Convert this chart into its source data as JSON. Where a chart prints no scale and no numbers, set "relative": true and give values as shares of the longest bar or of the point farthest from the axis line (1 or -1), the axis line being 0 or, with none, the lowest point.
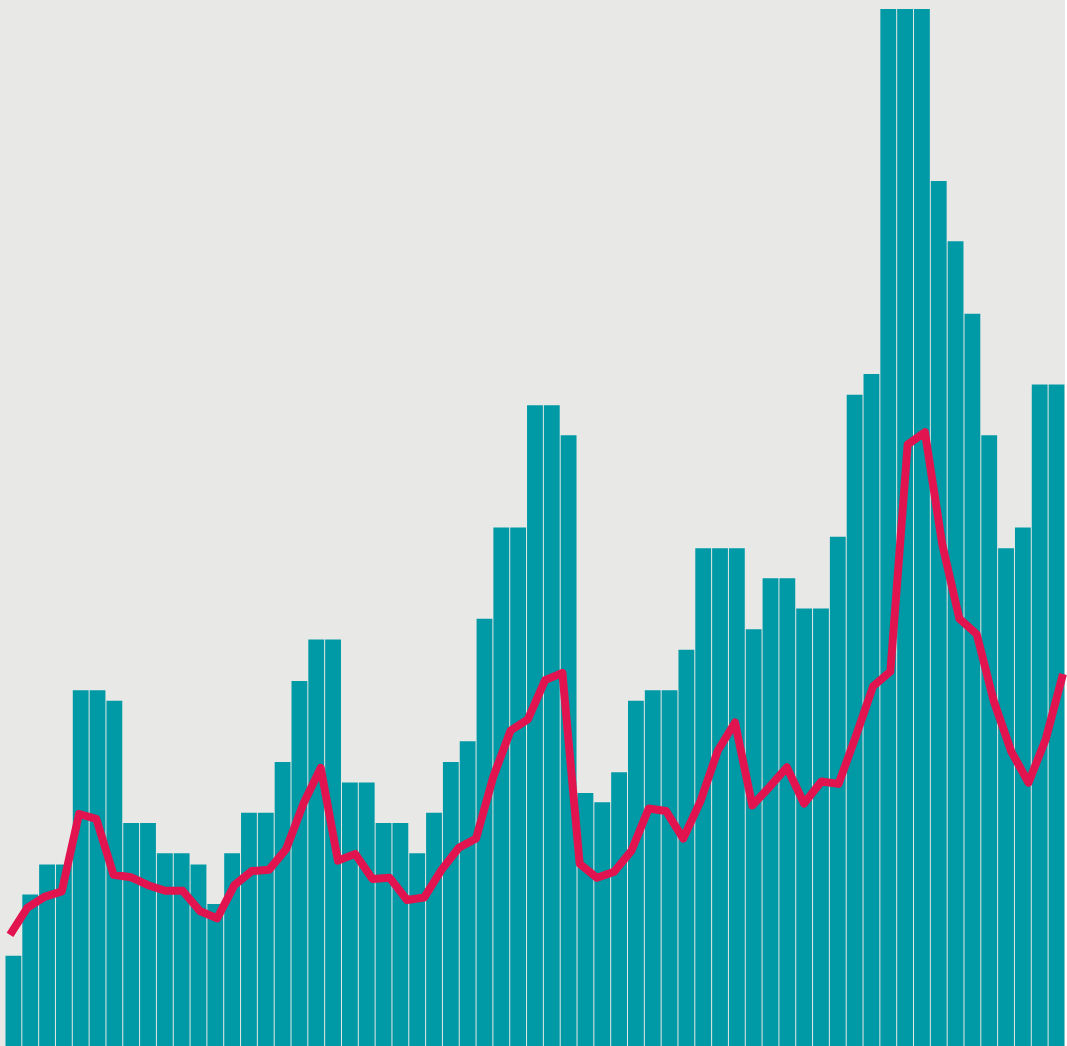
{
  "chart_data": [
    {
      "type": "bar",
      "relative": true,
      "color": "#0099a6",
      "categories": [
        null,
        null,
        null,
        null,
        null,
        null,
        null,
        null,
        null,
        null,
        null,
        null,
        null,
        null,
        null,
        null,
        null,
        null,
        null,
        null,
        null,
        null,
        null,
        null,
        null,
        null,
        null,
        null,
        null,
        null,
        null,
        null,
        null,
        null,
        null,
        null,
        null,
        null,
        null,
        null,
        null,
        null,
        null,
        null,
        null,
        null,
        null,
        null,
        null,
        null,
        null,
        null,
        null,
        null,
        null,
        null,
        null,
        null,
        null,
        null,
        null,
        null,
        null
      ],
      "values": [
        0.087,
        0.146,
        0.175,
        0.175,
        0.343,
        0.343,
        0.333,
        0.215,
        0.215,
        0.186,
        0.186,
        0.175,
        0.137,
        0.186,
        0.225,
        0.225,
        0.274,
        0.352,
        0.392,
        0.392,
        0.254,
        0.254,
        0.215,
        0.215,
        0.186,
        0.225,
        0.274,
        0.294,
        0.412,
        0.5,
        0.5,
        0.618,
        0.618,
        0.589,
        0.244,
        0.235,
        0.264,
        0.333,
        0.343,
        0.343,
        0.382,
        0.48,
        0.48,
        0.48,
        0.402,
        0.451,
        0.451,
        0.422,
        0.422,
        0.491,
        0.628,
        0.648,
        1,
        1,
        1,
        0.834,
        0.776,
        0.706,
        0.589,
        0.48,
        0.5,
        0.638,
        0.638
      ]
    },
    {
      "type": "line",
      "relative": true,
      "color": "#e2144f",
      "categories": [
        null,
        null,
        null,
        null,
        null,
        null,
        null,
        null,
        null,
        null,
        null,
        null,
        null,
        null,
        null,
        null,
        null,
        null,
        null,
        null,
        null,
        null,
        null,
        null,
        null,
        null,
        null,
        null,
        null,
        null,
        null,
        null,
        null,
        null,
        null,
        null,
        null,
        null,
        null,
        null,
        null,
        null,
        null,
        null,
        null,
        null,
        null,
        null,
        null,
        null,
        null,
        null,
        null,
        null,
        null,
        null,
        null,
        null,
        null,
        null,
        null,
        null
      ],
      "values": [
        0.181,
        0.225,
        0.243,
        0.252,
        0.378,
        0.37,
        0.279,
        0.275,
        0.262,
        0.253,
        0.253,
        0.22,
        0.208,
        0.262,
        0.285,
        0.287,
        0.321,
        0.395,
        0.453,
        0.302,
        0.313,
        0.272,
        0.274,
        0.238,
        0.242,
        0.287,
        0.323,
        0.338,
        0.439,
        0.514,
        0.532,
        0.596,
        0.608,
        0.297,
        0.274,
        0.284,
        0.318,
        0.387,
        0.383,
        0.338,
        0.399,
        0.481,
        0.527,
        0.392,
        0.422,
        0.454,
        0.395,
        0.431,
        0.427,
        0.505,
        0.586,
        0.61,
        0.98,
        1,
        0.818,
        0.696,
        0.671,
        0.561,
        0.48,
        0.429,
        0.5,
        0.606
      ]
    }
  ]
}
